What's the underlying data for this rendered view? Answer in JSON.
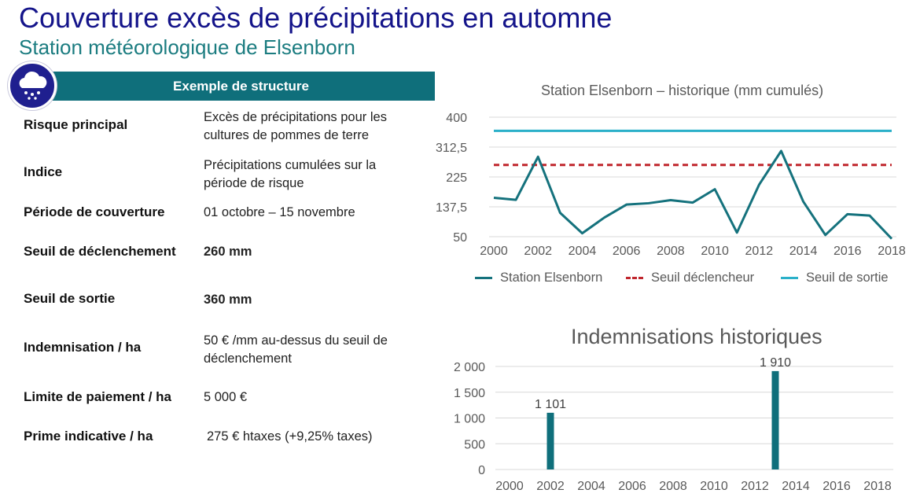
{
  "header": {
    "title": "Couverture excès de précipitations en automne",
    "subtitle": "Station météorologique de Elsenborn"
  },
  "colors": {
    "navy": "#1f1f8f",
    "teal": "#0f6f7b",
    "station": "#15727d",
    "trigger": "#c0262d",
    "exit": "#2bb0c9"
  },
  "icons": {
    "badge": "rain-cloud-icon"
  },
  "structure": {
    "banner": "Exemple de structure",
    "rows": [
      {
        "label": "Risque principal",
        "value": "Excès de précipitations pour les cultures de pommes de terre"
      },
      {
        "label": "Indice",
        "value": "Précipitations cumulées sur la période de risque"
      },
      {
        "label": "Période de couverture",
        "value": "01 octobre – 15 novembre"
      },
      {
        "label": "Seuil de déclenchement",
        "value": "260 mm"
      },
      {
        "label": "Seuil de sortie",
        "value": "360 mm"
      },
      {
        "label": "Indemnisation / ha",
        "value": "50 € /mm au-dessus du seuil de déclenchement"
      },
      {
        "label": "Limite de paiement / ha",
        "value": "5 000 €"
      },
      {
        "label": "Prime indicative / ha",
        "value": "275 € htaxes (+9,25% taxes)"
      }
    ]
  },
  "chart_data": [
    {
      "type": "line",
      "title": "Station Elsenborn – historique (mm cumulés)",
      "x": [
        2000,
        2001,
        2002,
        2003,
        2004,
        2005,
        2006,
        2007,
        2008,
        2009,
        2010,
        2011,
        2012,
        2013,
        2014,
        2015,
        2016,
        2017,
        2018
      ],
      "series": [
        {
          "name": "Station Elsenborn",
          "values": [
            164,
            158,
            284,
            120,
            60,
            106,
            144,
            148,
            157,
            150,
            189,
            62,
            202,
            301,
            153,
            55,
            116,
            112,
            44
          ]
        },
        {
          "name": "Seuil déclencheur",
          "values": [
            260,
            260,
            260,
            260,
            260,
            260,
            260,
            260,
            260,
            260,
            260,
            260,
            260,
            260,
            260,
            260,
            260,
            260,
            260
          ]
        },
        {
          "name": "Seuil de sortie",
          "values": [
            360,
            360,
            360,
            360,
            360,
            360,
            360,
            360,
            360,
            360,
            360,
            360,
            360,
            360,
            360,
            360,
            360,
            360,
            360
          ]
        }
      ],
      "yticks": [
        "400",
        "312,5",
        "225",
        "137,5",
        "50"
      ],
      "ytick_values": [
        400,
        312.5,
        225,
        137.5,
        50
      ],
      "xticks": [
        "2000",
        "2002",
        "2004",
        "2006",
        "2008",
        "2010",
        "2012",
        "2014",
        "2016",
        "2018"
      ],
      "ylim": [
        50,
        400
      ],
      "grid": true,
      "legend": "bottom"
    },
    {
      "type": "bar",
      "title": "Indemnisations historiques",
      "x": [
        2000,
        2001,
        2002,
        2003,
        2004,
        2005,
        2006,
        2007,
        2008,
        2009,
        2010,
        2011,
        2012,
        2013,
        2014,
        2015,
        2016,
        2017,
        2018
      ],
      "values": [
        0,
        0,
        1101,
        0,
        0,
        0,
        0,
        0,
        0,
        0,
        0,
        0,
        0,
        1910,
        0,
        0,
        0,
        0,
        0
      ],
      "data_labels": {
        "2002": "1 101",
        "2013": "1 910"
      },
      "yticks": [
        "2 000",
        "1 500",
        "1 000",
        "500",
        "0"
      ],
      "ytick_values": [
        2000,
        1500,
        1000,
        500,
        0
      ],
      "xticks": [
        "2000",
        "2002",
        "2004",
        "2006",
        "2008",
        "2010",
        "2012",
        "2014",
        "2016",
        "2018"
      ],
      "ylim": [
        0,
        2000
      ],
      "grid": true
    }
  ]
}
